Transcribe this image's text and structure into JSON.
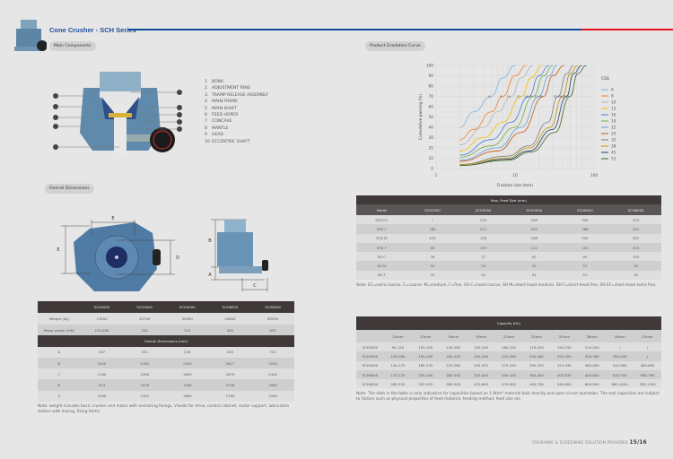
{
  "header": {
    "title": "Cone Crusher - SCH Series",
    "accent_blue": "#0d4a9a",
    "accent_red": "#e8101c"
  },
  "sections": {
    "main_components": "Main Components",
    "gradation": "Product Gradation Curve",
    "overall_dimensions": "Overall Dimensions"
  },
  "components": [
    {
      "num": "1",
      "label": "BOWL"
    },
    {
      "num": "2",
      "label": "ADJUSTMENT RING"
    },
    {
      "num": "3",
      "label": "TRAMP RELEASE ASSEMBLY"
    },
    {
      "num": "4",
      "label": "MAIN FRAME"
    },
    {
      "num": "5",
      "label": "MAIN SHAFT"
    },
    {
      "num": "6",
      "label": "FEED HOPER"
    },
    {
      "num": "7",
      "label": "CONCAVE"
    },
    {
      "num": "8",
      "label": "MANTLE"
    },
    {
      "num": "9",
      "label": "HEAD"
    },
    {
      "num": "10",
      "label": "ECCENTRIC SHAFT"
    }
  ],
  "dim_labels": {
    "a": "A",
    "b": "B",
    "c": "C",
    "d": "D",
    "e": "E"
  },
  "specs_table": {
    "columns": [
      "",
      "SCH2000",
      "SCH3000",
      "SCH4000",
      "SCH6000",
      "SCH8000"
    ],
    "rows": [
      [
        "Weight (kg)",
        "13500",
        "20700",
        "30900",
        "44800",
        "85300"
      ],
      [
        "Motor power (kW)",
        "132/160",
        "250",
        "315",
        "400",
        "630"
      ]
    ],
    "dims_title": "Overall Dimensions (mm)",
    "dim_rows": [
      [
        "A",
        "297",
        "331",
        "226",
        "425",
        "725"
      ],
      [
        "B",
        "1920",
        "2195",
        "2300",
        "2817",
        "3250"
      ],
      [
        "C",
        "1160",
        "1396",
        "1690",
        "1879",
        "2429"
      ],
      [
        "D",
        "914",
        "1078",
        "1308",
        "1536",
        "1863"
      ],
      [
        "E",
        "1090",
        "1320",
        "1660",
        "1764",
        "2260"
      ]
    ],
    "note": "Note: weight includes basic crusher and motor with anchoring fixings, V-belts for drive, control cabinet, motor support, lubrication station with hosing, fixing items."
  },
  "feed_table": {
    "title": "Max. Feed Size (mm)",
    "columns": [
      "Model",
      "SCH2000",
      "SCH3000",
      "SCH4000",
      "SCH6000",
      "SCH8000"
    ],
    "rows": [
      [
        "STD EC",
        "/",
        "233",
        "299",
        "335",
        "353"
      ],
      [
        "STD C",
        "185",
        "211",
        "252",
        "286",
        "291"
      ],
      [
        "STD M",
        "125",
        "150",
        "198",
        "204",
        "267"
      ],
      [
        "STD F",
        "95",
        "107",
        "111",
        "133",
        "219"
      ],
      [
        "SH C",
        "76",
        "77",
        "92",
        "95",
        "155"
      ],
      [
        "SH M",
        "54",
        "53",
        "52",
        "57",
        "92"
      ],
      [
        "SH F",
        "23",
        "22",
        "51",
        "51",
        "33"
      ]
    ],
    "note": "Note: EC=extra coarse, C=coarse. M=medium, F=fine, SH C=head coarse, SH M=short-head medium, SH F=short-head fine, SH EF=short-head extra fine."
  },
  "capacity_table": {
    "title": "Capacity (t/h)",
    "columns": [
      "",
      "10mm",
      "13mm",
      "16mm",
      "19mm",
      "22mm",
      "25mm",
      "32mm",
      "38mm",
      "45mm",
      "51mm"
    ],
    "rows": [
      [
        "SCH2000",
        "90-120",
        "120-150",
        "140-180",
        "150-190",
        "160-200",
        "170-220",
        "195-235",
        "210-250",
        "/",
        "/"
      ],
      [
        "SCH3000",
        "156-180",
        "150-185",
        "180-220",
        "200-240",
        "220-260",
        "230-280",
        "250-320",
        "300-380",
        "350-440",
        "/"
      ],
      [
        "SCH4000",
        "140-175",
        "185-230",
        "225-280",
        "255-325",
        "275-345",
        "295-370",
        "325-430",
        "360-490",
        "410-560",
        "465-650"
      ],
      [
        "SCH6000",
        "175-220",
        "230-290",
        "280-350",
        "320-400",
        "345-430",
        "365-455",
        "405-535",
        "445-605",
        "510-700",
        "580-790"
      ],
      [
        "SCH8000",
        "260-335",
        "325-425",
        "385-500",
        "470-600",
        "470-600",
        "495-730",
        "545-800",
        "600-950",
        "690-1050",
        "785-1200"
      ]
    ],
    "note": "Note: The data in the table is only indicative for capacities based on 1.6t/m³ material bulk density and open circuit operation. The real capacities are subject to factors such as physical properties of feed material, feeding method, feed size etc."
  },
  "footer": {
    "tagline": "CRUSHING & SCREENING SOLUTION PROVIDER",
    "page": "15/16"
  },
  "chart_data": {
    "type": "line",
    "title": "",
    "xlabel": "Fraction size (mm)",
    "ylabel": "Cumulative passing (%)",
    "xscale": "log",
    "xlim": [
      1,
      100
    ],
    "ylim": [
      0,
      100
    ],
    "xticks": [
      "1",
      "10",
      "100"
    ],
    "yticks": [
      "0",
      "10",
      "20",
      "30",
      "40",
      "50",
      "60",
      "70",
      "80",
      "90",
      "100"
    ],
    "grid": true,
    "legend_title": "CSS",
    "legend_position": "right",
    "series": [
      {
        "name": "6",
        "color": "#7fb0e0",
        "points": [
          [
            2,
            40
          ],
          [
            3,
            55
          ],
          [
            5,
            70
          ],
          [
            7,
            88
          ],
          [
            10,
            100
          ]
        ]
      },
      {
        "name": "8",
        "color": "#f08030",
        "points": [
          [
            2,
            28
          ],
          [
            3,
            38
          ],
          [
            5,
            55
          ],
          [
            7,
            70
          ],
          [
            10,
            90
          ],
          [
            14,
            100
          ]
        ]
      },
      {
        "name": "10",
        "color": "#b4b4b4",
        "points": [
          [
            2,
            23
          ],
          [
            4,
            40
          ],
          [
            6,
            55
          ],
          [
            9,
            70
          ],
          [
            12,
            88
          ],
          [
            17,
            100
          ]
        ]
      },
      {
        "name": "13",
        "color": "#f5c000",
        "points": [
          [
            2,
            17
          ],
          [
            4,
            30
          ],
          [
            7,
            45
          ],
          [
            12,
            70
          ],
          [
            16,
            88
          ],
          [
            22,
            100
          ]
        ]
      },
      {
        "name": "16",
        "color": "#4a7fd0",
        "points": [
          [
            2,
            13
          ],
          [
            5,
            28
          ],
          [
            9,
            45
          ],
          [
            15,
            70
          ],
          [
            20,
            90
          ],
          [
            27,
            100
          ]
        ]
      },
      {
        "name": "19",
        "color": "#70ad47",
        "points": [
          [
            2,
            11
          ],
          [
            5,
            22
          ],
          [
            10,
            40
          ],
          [
            17,
            70
          ],
          [
            23,
            90
          ],
          [
            30,
            100
          ]
        ]
      },
      {
        "name": "22",
        "color": "#5fa0d8",
        "points": [
          [
            2,
            8
          ],
          [
            6,
            20
          ],
          [
            12,
            40
          ],
          [
            20,
            70
          ],
          [
            27,
            90
          ],
          [
            34,
            100
          ]
        ]
      },
      {
        "name": "25",
        "color": "#c55a11",
        "points": [
          [
            2,
            7
          ],
          [
            6,
            17
          ],
          [
            12,
            35
          ],
          [
            23,
            70
          ],
          [
            30,
            90
          ],
          [
            42,
            100
          ]
        ]
      },
      {
        "name": "32",
        "color": "#7f7f7f",
        "points": [
          [
            2,
            4
          ],
          [
            8,
            12
          ],
          [
            15,
            22
          ],
          [
            26,
            45
          ],
          [
            35,
            70
          ],
          [
            45,
            92
          ],
          [
            55,
            100
          ]
        ]
      },
      {
        "name": "38",
        "color": "#bf9000",
        "points": [
          [
            2,
            4
          ],
          [
            8,
            10
          ],
          [
            15,
            20
          ],
          [
            28,
            40
          ],
          [
            40,
            70
          ],
          [
            50,
            92
          ],
          [
            62,
            100
          ]
        ]
      },
      {
        "name": "45",
        "color": "#264478",
        "points": [
          [
            2,
            3
          ],
          [
            8,
            9
          ],
          [
            15,
            17
          ],
          [
            30,
            38
          ],
          [
            45,
            70
          ],
          [
            55,
            92
          ],
          [
            70,
            100
          ]
        ]
      },
      {
        "name": "51",
        "color": "#43682b",
        "points": [
          [
            2,
            3
          ],
          [
            8,
            8
          ],
          [
            16,
            16
          ],
          [
            32,
            35
          ],
          [
            50,
            70
          ],
          [
            62,
            92
          ],
          [
            80,
            100
          ]
        ]
      }
    ]
  }
}
